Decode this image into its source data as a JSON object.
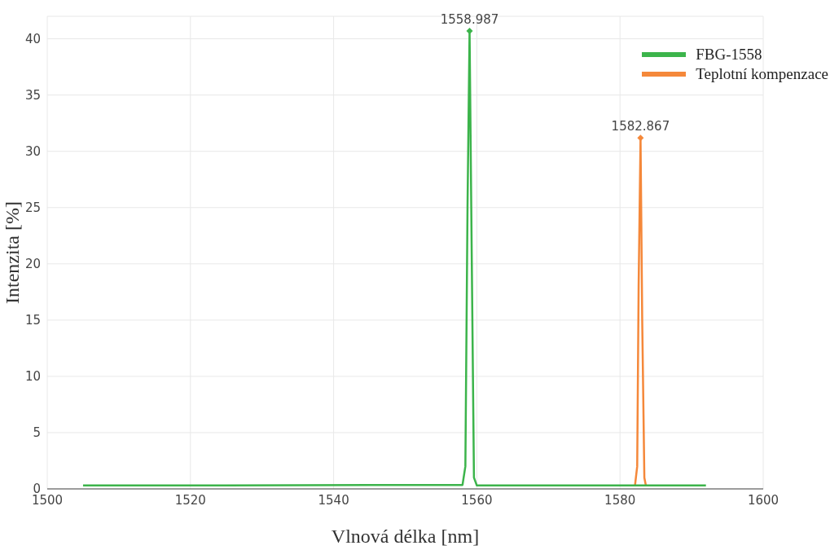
{
  "chart_data": {
    "type": "line",
    "xlabel": "Vlnová délka [nm]",
    "ylabel": "Intenzita [%]",
    "xlim": [
      1500,
      1600
    ],
    "xticks": [
      1500,
      1520,
      1540,
      1560,
      1580,
      1600
    ],
    "ylim": [
      0,
      42
    ],
    "yticks": [
      0,
      5,
      10,
      15,
      20,
      25,
      30,
      35,
      40
    ],
    "grid": true,
    "legend": "top right",
    "series": [
      {
        "name": "FBG-1558",
        "color": "#3cb44b",
        "x": [
          1505,
          1515,
          1525,
          1535,
          1545,
          1555,
          1558.0,
          1558.4,
          1558.7,
          1558.987,
          1559.3,
          1559.6,
          1560,
          1570,
          1580,
          1592
        ],
        "values": [
          0.3,
          0.3,
          0.3,
          0.32,
          0.35,
          0.35,
          0.35,
          2,
          25,
          40.7,
          20,
          1,
          0.3,
          0.3,
          0.3,
          0.3
        ]
      },
      {
        "name": "Teplotní kompenzace",
        "color": "#f5883a",
        "x": [
          1582.1,
          1582.4,
          1582.6,
          1582.867,
          1583.1,
          1583.4,
          1583.6
        ],
        "values": [
          0.35,
          2,
          18,
          31.2,
          15,
          1,
          0.35
        ]
      }
    ],
    "annotations": [
      {
        "text": "1558.987",
        "x": 1558.987,
        "y": 40.7
      },
      {
        "text": "1582.867",
        "x": 1582.867,
        "y": 31.2
      }
    ]
  }
}
